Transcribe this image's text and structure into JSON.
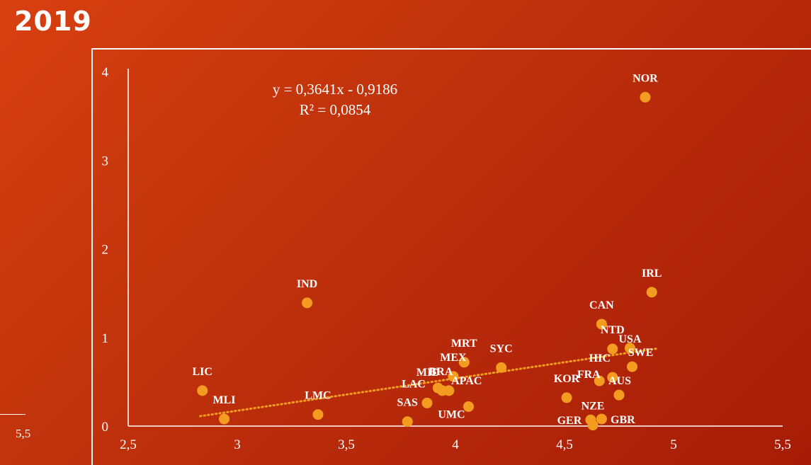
{
  "slide": {
    "title": "2019",
    "stray_label": "5,5"
  },
  "chart_data": {
    "type": "scatter",
    "xlabel": "",
    "ylabel": "",
    "xlim": [
      2.5,
      5.5
    ],
    "ylim": [
      0,
      4
    ],
    "x_ticks": [
      "2,5",
      "3",
      "3,5",
      "4",
      "4,5",
      "5",
      "5,5"
    ],
    "y_ticks": [
      "0",
      "1",
      "2",
      "3",
      "4"
    ],
    "grid": false,
    "point_color": "#f39c1f",
    "trendline_color": "#f39c1f",
    "trendline": {
      "type": "linear",
      "slope": 0.3641,
      "intercept": -0.9186,
      "x_range": [
        2.83,
        4.92
      ],
      "equation": "y = 0,3641x - 0,9186",
      "r_squared": "R² = 0,0854"
    },
    "points": [
      {
        "label": "LIC",
        "x": 2.84,
        "y": 0.4
      },
      {
        "label": "MLI",
        "x": 2.94,
        "y": 0.08
      },
      {
        "label": "IND",
        "x": 3.32,
        "y": 1.39
      },
      {
        "label": "LMC",
        "x": 3.37,
        "y": 0.13
      },
      {
        "label": "SAS",
        "x": 3.78,
        "y": 0.05
      },
      {
        "label": "LAC",
        "x": 3.87,
        "y": 0.26
      },
      {
        "label": "MID",
        "x": 3.92,
        "y": 0.43
      },
      {
        "label": "BRA",
        "x": 3.94,
        "y": 0.4
      },
      {
        "label": "APAC",
        "x": 3.97,
        "y": 0.4
      },
      {
        "label": "MEX",
        "x": 3.99,
        "y": 0.56
      },
      {
        "label": "MRT",
        "x": 4.04,
        "y": 0.72
      },
      {
        "label": "UMC",
        "x": 4.06,
        "y": 0.22
      },
      {
        "label": "SYC",
        "x": 4.21,
        "y": 0.66
      },
      {
        "label": "KOR",
        "x": 4.51,
        "y": 0.32
      },
      {
        "label": "GER",
        "x": 4.62,
        "y": 0.07
      },
      {
        "label": "NZE",
        "x": 4.63,
        "y": 0.01
      },
      {
        "label": "GBR",
        "x": 4.67,
        "y": 0.08
      },
      {
        "label": "FRA",
        "x": 4.66,
        "y": 0.51
      },
      {
        "label": "CAN",
        "x": 4.67,
        "y": 1.15
      },
      {
        "label": "HIC",
        "x": 4.72,
        "y": 0.55
      },
      {
        "label": "NTD",
        "x": 4.72,
        "y": 0.87
      },
      {
        "label": "AUS",
        "x": 4.75,
        "y": 0.35
      },
      {
        "label": "SWE",
        "x": 4.81,
        "y": 0.67
      },
      {
        "label": "USA",
        "x": 4.8,
        "y": 0.88
      },
      {
        "label": "NOR",
        "x": 4.87,
        "y": 3.71
      },
      {
        "label": "IRL",
        "x": 4.9,
        "y": 1.51
      }
    ]
  }
}
